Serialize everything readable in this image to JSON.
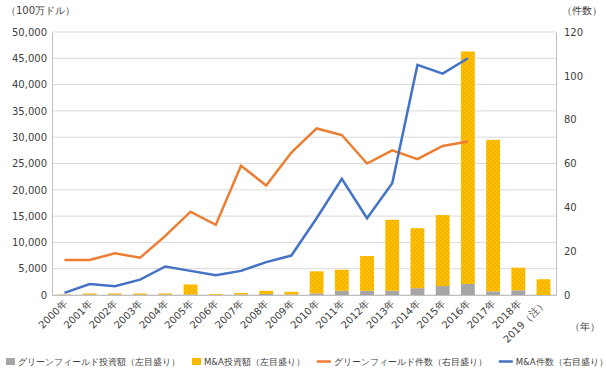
{
  "chart_data": {
    "type": "bar",
    "stacked": true,
    "grid": true,
    "legend": "bottom",
    "y_label": "（100万ドル）",
    "y2_label": "（件数）",
    "x_label": "（年）",
    "categories": [
      "2000年",
      "2001年",
      "2002年",
      "2003年",
      "2004年",
      "2005年",
      "2006年",
      "2007年",
      "2008年",
      "2009年",
      "2010年",
      "2011年",
      "2012年",
      "2013年",
      "2014年",
      "2015年",
      "2016年",
      "2017年",
      "2018年",
      "2019（注）"
    ],
    "series": [
      {
        "name": "グリーンフィールド投資額（左目盛り）",
        "type": "bar",
        "color": "#a5a5a5",
        "values": [
          50,
          100,
          100,
          100,
          100,
          100,
          50,
          100,
          200,
          100,
          300,
          800,
          800,
          800,
          1300,
          1700,
          2100,
          700,
          900,
          0
        ]
      },
      {
        "name": "M&A投資額（左目盛り）",
        "type": "bar",
        "color": "#ffc000",
        "values": [
          50,
          200,
          200,
          200,
          200,
          1900,
          150,
          300,
          600,
          500,
          4200,
          4000,
          6600,
          13500,
          11400,
          13500,
          44200,
          28800,
          4300,
          3000
        ]
      },
      {
        "name": "グリーンフィールド件数（右目盛り）",
        "type": "line",
        "axis": "y2",
        "color": "#ed7d31",
        "values": [
          16,
          16,
          19,
          17,
          27,
          38,
          32,
          59,
          50,
          65,
          76,
          73,
          60,
          66,
          62,
          68,
          70,
          null,
          null,
          null
        ]
      },
      {
        "name": "M&A件数（右目盛り）",
        "type": "line",
        "axis": "y2",
        "color": "#4472c4",
        "values": [
          1,
          5,
          4,
          7,
          13,
          11,
          9,
          11,
          15,
          18,
          35,
          53,
          35,
          51,
          105,
          101,
          108,
          null,
          null,
          null
        ]
      }
    ],
    "ylim": [
      0,
      50000
    ],
    "yticks": [
      0,
      {
        "value": 5000,
        "label": "5,000"
      },
      {
        "value": 10000,
        "label": "10,000"
      },
      {
        "value": 15000,
        "label": "15,000"
      },
      {
        "value": 20000,
        "label": "20,000"
      },
      {
        "value": 25000,
        "label": "25,000"
      },
      {
        "value": 30000,
        "label": "30,000"
      },
      {
        "value": 35000,
        "label": "35,000"
      },
      {
        "value": 40000,
        "label": "40,000"
      },
      {
        "value": 45000,
        "label": "45,000"
      },
      {
        "value": 50000,
        "label": "50,000"
      }
    ],
    "y2lim": [
      0,
      120
    ],
    "y2ticks": [
      0,
      20,
      40,
      60,
      80,
      100,
      120
    ]
  }
}
